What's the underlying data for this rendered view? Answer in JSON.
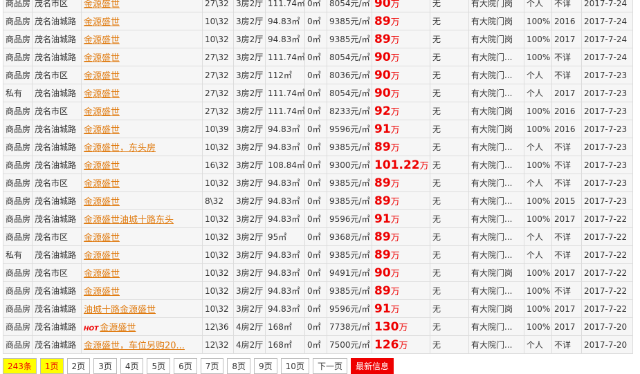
{
  "price_unit": "万",
  "rows": [
    {
      "type": "商品房",
      "area": "茂名市区",
      "name": "金源盛世",
      "floor": "27\\32",
      "layout": "3房2厅",
      "size": "111.74㎡",
      "extra": "0㎡",
      "unit_price": "8054元/㎡",
      "price": "90",
      "facility": "无",
      "guard": "有大院门岗",
      "owner": "个人",
      "year": "不详",
      "date": "2017-7-24"
    },
    {
      "type": "商品房",
      "area": "茂名油城路",
      "name": "金源盛世",
      "floor": "10\\32",
      "layout": "3房2厅",
      "size": "94.83㎡",
      "extra": "0㎡",
      "unit_price": "9385元/㎡",
      "price": "89",
      "facility": "无",
      "guard": "有大院门岗",
      "owner": "100%",
      "year": "2016",
      "date": "2017-7-24"
    },
    {
      "type": "商品房",
      "area": "茂名油城路",
      "name": "金源盛世",
      "floor": "10\\32",
      "layout": "3房2厅",
      "size": "94.83㎡",
      "extra": "0㎡",
      "unit_price": "9385元/㎡",
      "price": "89",
      "facility": "无",
      "guard": "有大院门岗",
      "owner": "100%",
      "year": "2017",
      "date": "2017-7-24"
    },
    {
      "type": "商品房",
      "area": "茂名油城路",
      "name": "金源盛世",
      "floor": "27\\32",
      "layout": "3房2厅",
      "size": "111.74㎡",
      "extra": "0㎡",
      "unit_price": "8054元/㎡",
      "price": "90",
      "facility": "无",
      "guard": "有大院门...",
      "owner": "100%",
      "year": "不详",
      "date": "2017-7-24"
    },
    {
      "type": "商品房",
      "area": "茂名市区",
      "name": "金源盛世",
      "floor": "27\\32",
      "layout": "3房2厅",
      "size": "112㎡",
      "extra": "0㎡",
      "unit_price": "8036元/㎡",
      "price": "90",
      "facility": "无",
      "guard": "有大院门...",
      "owner": "个人",
      "year": "不详",
      "date": "2017-7-23"
    },
    {
      "type": "私有",
      "area": "茂名油城路",
      "name": "金源盛世",
      "floor": "27\\32",
      "layout": "3房2厅",
      "size": "111.74㎡",
      "extra": "0㎡",
      "unit_price": "8054元/㎡",
      "price": "90",
      "facility": "无",
      "guard": "有大院门...",
      "owner": "个人",
      "year": "2017",
      "date": "2017-7-23"
    },
    {
      "type": "商品房",
      "area": "茂名市区",
      "name": "金源盛世",
      "floor": "27\\32",
      "layout": "3房2厅",
      "size": "111.74㎡",
      "extra": "0㎡",
      "unit_price": "8233元/㎡",
      "price": "92",
      "facility": "无",
      "guard": "有大院门岗",
      "owner": "100%",
      "year": "2016",
      "date": "2017-7-23"
    },
    {
      "type": "商品房",
      "area": "茂名油城路",
      "name": "金源盛世",
      "floor": "10\\39",
      "layout": "3房2厅",
      "size": "94.83㎡",
      "extra": "0㎡",
      "unit_price": "9596元/㎡",
      "price": "91",
      "facility": "无",
      "guard": "有大院门岗",
      "owner": "100%",
      "year": "2016",
      "date": "2017-7-23"
    },
    {
      "type": "商品房",
      "area": "茂名油城路",
      "name": "金源盛世，东头房",
      "floor": "10\\32",
      "layout": "3房2厅",
      "size": "94.83㎡",
      "extra": "0㎡",
      "unit_price": "9385元/㎡",
      "price": "89",
      "facility": "无",
      "guard": "有大院门...",
      "owner": "个人",
      "year": "不详",
      "date": "2017-7-23"
    },
    {
      "type": "商品房",
      "area": "茂名油城路",
      "name": "金源盛世",
      "floor": "16\\32",
      "layout": "3房2厅",
      "size": "108.84㎡",
      "extra": "0㎡",
      "unit_price": "9300元/㎡",
      "price": "101.22",
      "facility": "无",
      "guard": "有大院门...",
      "owner": "100%",
      "year": "不详",
      "date": "2017-7-23"
    },
    {
      "type": "商品房",
      "area": "茂名市区",
      "name": "金源盛世",
      "floor": "10\\32",
      "layout": "3房2厅",
      "size": "94.83㎡",
      "extra": "0㎡",
      "unit_price": "9385元/㎡",
      "price": "89",
      "facility": "无",
      "guard": "有大院门...",
      "owner": "个人",
      "year": "不详",
      "date": "2017-7-23"
    },
    {
      "type": "商品房",
      "area": "茂名油城路",
      "name": "金源盛世",
      "floor": "8\\32",
      "layout": "3房2厅",
      "size": "94.83㎡",
      "extra": "0㎡",
      "unit_price": "9385元/㎡",
      "price": "89",
      "facility": "无",
      "guard": "有大院门...",
      "owner": "100%",
      "year": "2015",
      "date": "2017-7-23"
    },
    {
      "type": "商品房",
      "area": "茂名油城路",
      "name": "金源盛世油城十路东头",
      "floor": "10\\32",
      "layout": "3房2厅",
      "size": "94.83㎡",
      "extra": "0㎡",
      "unit_price": "9596元/㎡",
      "price": "91",
      "facility": "无",
      "guard": "有大院门...",
      "owner": "100%",
      "year": "2017",
      "date": "2017-7-22"
    },
    {
      "type": "商品房",
      "area": "茂名市区",
      "name": "金源盛世",
      "floor": "10\\32",
      "layout": "3房2厅",
      "size": "95㎡",
      "extra": "0㎡",
      "unit_price": "9368元/㎡",
      "price": "89",
      "facility": "无",
      "guard": "有大院门...",
      "owner": "个人",
      "year": "不详",
      "date": "2017-7-22"
    },
    {
      "type": "私有",
      "area": "茂名油城路",
      "name": "金源盛世",
      "floor": "10\\32",
      "layout": "3房2厅",
      "size": "94.83㎡",
      "extra": "0㎡",
      "unit_price": "9385元/㎡",
      "price": "89",
      "facility": "无",
      "guard": "有大院门...",
      "owner": "个人",
      "year": "不详",
      "date": "2017-7-22"
    },
    {
      "type": "商品房",
      "area": "茂名市区",
      "name": "金源盛世",
      "floor": "10\\32",
      "layout": "3房2厅",
      "size": "94.83㎡",
      "extra": "0㎡",
      "unit_price": "9491元/㎡",
      "price": "90",
      "facility": "无",
      "guard": "有大院门岗",
      "owner": "100%",
      "year": "2017",
      "date": "2017-7-22"
    },
    {
      "type": "商品房",
      "area": "茂名油城路",
      "name": "金源盛世",
      "floor": "10\\32",
      "layout": "3房2厅",
      "size": "94.83㎡",
      "extra": "0㎡",
      "unit_price": "9385元/㎡",
      "price": "89",
      "facility": "无",
      "guard": "有大院门...",
      "owner": "100%",
      "year": "不详",
      "date": "2017-7-22"
    },
    {
      "type": "商品房",
      "area": "茂名油城路",
      "name": "油城十路金源盛世",
      "floor": "10\\32",
      "layout": "3房2厅",
      "size": "94.83㎡",
      "extra": "0㎡",
      "unit_price": "9596元/㎡",
      "price": "91",
      "facility": "无",
      "guard": "有大院门岗",
      "owner": "100%",
      "year": "2017",
      "date": "2017-7-22"
    },
    {
      "type": "商品房",
      "area": "茂名油城路",
      "badge": "HOT",
      "name": "金源盛世",
      "floor": "12\\36",
      "layout": "4房2厅",
      "size": "168㎡",
      "extra": "0㎡",
      "unit_price": "7738元/㎡",
      "price": "130",
      "facility": "无",
      "guard": "有大院门...",
      "owner": "100%",
      "year": "2017",
      "date": "2017-7-20"
    },
    {
      "type": "商品房",
      "area": "茂名油城路",
      "name": "金源盛世，车位另购20...",
      "floor": "12\\32",
      "layout": "4房2厅",
      "size": "168㎡",
      "extra": "0㎡",
      "unit_price": "7500元/㎡",
      "price": "126",
      "facility": "无",
      "guard": "有大院门...",
      "owner": "个人",
      "year": "不详",
      "date": "2017-7-20"
    }
  ],
  "pager": {
    "count": "243条",
    "current": "1页",
    "pages": [
      "2页",
      "3页",
      "4页",
      "5页",
      "6页",
      "7页",
      "8页",
      "9页",
      "10页"
    ],
    "next": "下一页",
    "latest": "最新信息"
  }
}
